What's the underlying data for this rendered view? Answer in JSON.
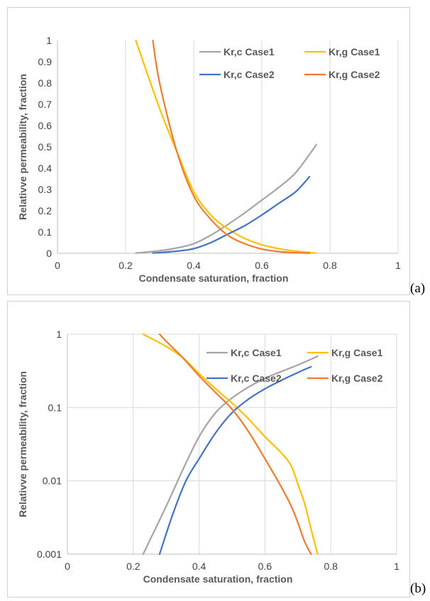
{
  "colors": {
    "Kr,c Case1": "#a5a5a5",
    "Kr,g Case1": "#ffc000",
    "Kr,c Case2": "#4472c4",
    "Kr,g Case2": "#ed7d31"
  },
  "labels": {
    "a": "(a)",
    "b": "(b)"
  },
  "chart_data": [
    {
      "type": "line",
      "id": "a",
      "xlabel": "Condensate saturation, fraction",
      "ylabel": "Relativve permeability, fraction",
      "xlim": [
        0,
        1
      ],
      "ylim": [
        0,
        1
      ],
      "yscale": "linear",
      "xticks": [
        0,
        0.2,
        0.4,
        0.6,
        0.8,
        1
      ],
      "xtick_labels": [
        "0",
        "0.2",
        "0.4",
        "0.6",
        "0.8",
        "1"
      ],
      "yticks": [
        0,
        0.1,
        0.2,
        0.3,
        0.4,
        0.5,
        0.6,
        0.7,
        0.8,
        0.9,
        1
      ],
      "ytick_labels": [
        "0",
        "0.1",
        "0.2",
        "0.3",
        "0.4",
        "0.5",
        "0.6",
        "0.7",
        "0.8",
        "0.9",
        "1"
      ],
      "grid": "vertical",
      "legend": "top-right",
      "series": [
        {
          "name": "Kr,c Case1",
          "x": [
            0.23,
            0.3,
            0.35,
            0.4,
            0.45,
            0.5,
            0.55,
            0.6,
            0.65,
            0.7,
            0.76
          ],
          "y": [
            0.001,
            0.012,
            0.025,
            0.045,
            0.085,
            0.135,
            0.19,
            0.25,
            0.31,
            0.38,
            0.51
          ]
        },
        {
          "name": "Kr,g Case1",
          "x": [
            0.23,
            0.3,
            0.35,
            0.4,
            0.45,
            0.5,
            0.55,
            0.6,
            0.65,
            0.7,
            0.76
          ],
          "y": [
            1.0,
            0.68,
            0.48,
            0.29,
            0.18,
            0.115,
            0.07,
            0.04,
            0.022,
            0.01,
            0.001
          ]
        },
        {
          "name": "Kr,c Case2",
          "x": [
            0.28,
            0.35,
            0.4,
            0.45,
            0.5,
            0.55,
            0.6,
            0.65,
            0.7,
            0.74
          ],
          "y": [
            0.001,
            0.01,
            0.022,
            0.05,
            0.09,
            0.13,
            0.18,
            0.235,
            0.29,
            0.36
          ]
        },
        {
          "name": "Kr,g Case2",
          "x": [
            0.28,
            0.3,
            0.35,
            0.4,
            0.45,
            0.5,
            0.55,
            0.6,
            0.65,
            0.7,
            0.74
          ],
          "y": [
            1.0,
            0.8,
            0.48,
            0.27,
            0.16,
            0.085,
            0.045,
            0.02,
            0.008,
            0.003,
            0.001
          ]
        }
      ]
    },
    {
      "type": "line",
      "id": "b",
      "xlabel": "Condensate saturation, fraction",
      "ylabel": "Relativve permeability, fraction",
      "xlim": [
        0,
        1
      ],
      "ylim": [
        0.001,
        1
      ],
      "yscale": "log",
      "xticks": [
        0,
        0.2,
        0.4,
        0.6,
        0.8,
        1
      ],
      "xtick_labels": [
        "0",
        "0.2",
        "0.4",
        "0.6",
        "0.8",
        "1"
      ],
      "yticks": [
        0.001,
        0.01,
        0.1,
        1
      ],
      "ytick_labels": [
        "0.001",
        "0.01",
        "0.1",
        "1"
      ],
      "grid": "both",
      "legend": "top-right",
      "series": [
        {
          "name": "Kr,c Case1",
          "x": [
            0.23,
            0.3,
            0.35,
            0.4,
            0.45,
            0.5,
            0.55,
            0.6,
            0.65,
            0.7,
            0.76
          ],
          "y": [
            0.001,
            0.0045,
            0.014,
            0.04,
            0.085,
            0.135,
            0.19,
            0.25,
            0.31,
            0.38,
            0.5
          ]
        },
        {
          "name": "Kr,g Case1",
          "x": [
            0.23,
            0.3,
            0.35,
            0.4,
            0.45,
            0.5,
            0.55,
            0.6,
            0.65,
            0.68,
            0.7,
            0.72,
            0.74,
            0.76
          ],
          "y": [
            1.0,
            0.68,
            0.48,
            0.29,
            0.18,
            0.115,
            0.07,
            0.04,
            0.024,
            0.016,
            0.009,
            0.005,
            0.0022,
            0.001
          ]
        },
        {
          "name": "Kr,c Case2",
          "x": [
            0.28,
            0.32,
            0.36,
            0.4,
            0.45,
            0.5,
            0.55,
            0.6,
            0.65,
            0.7,
            0.74
          ],
          "y": [
            0.001,
            0.0035,
            0.01,
            0.02,
            0.045,
            0.085,
            0.13,
            0.18,
            0.235,
            0.3,
            0.36
          ]
        },
        {
          "name": "Kr,g Case2",
          "x": [
            0.28,
            0.3,
            0.35,
            0.4,
            0.45,
            0.5,
            0.55,
            0.6,
            0.65,
            0.68,
            0.7,
            0.72,
            0.74
          ],
          "y": [
            1.0,
            0.8,
            0.48,
            0.27,
            0.16,
            0.095,
            0.047,
            0.02,
            0.0082,
            0.0045,
            0.0027,
            0.0015,
            0.001
          ]
        }
      ]
    }
  ]
}
